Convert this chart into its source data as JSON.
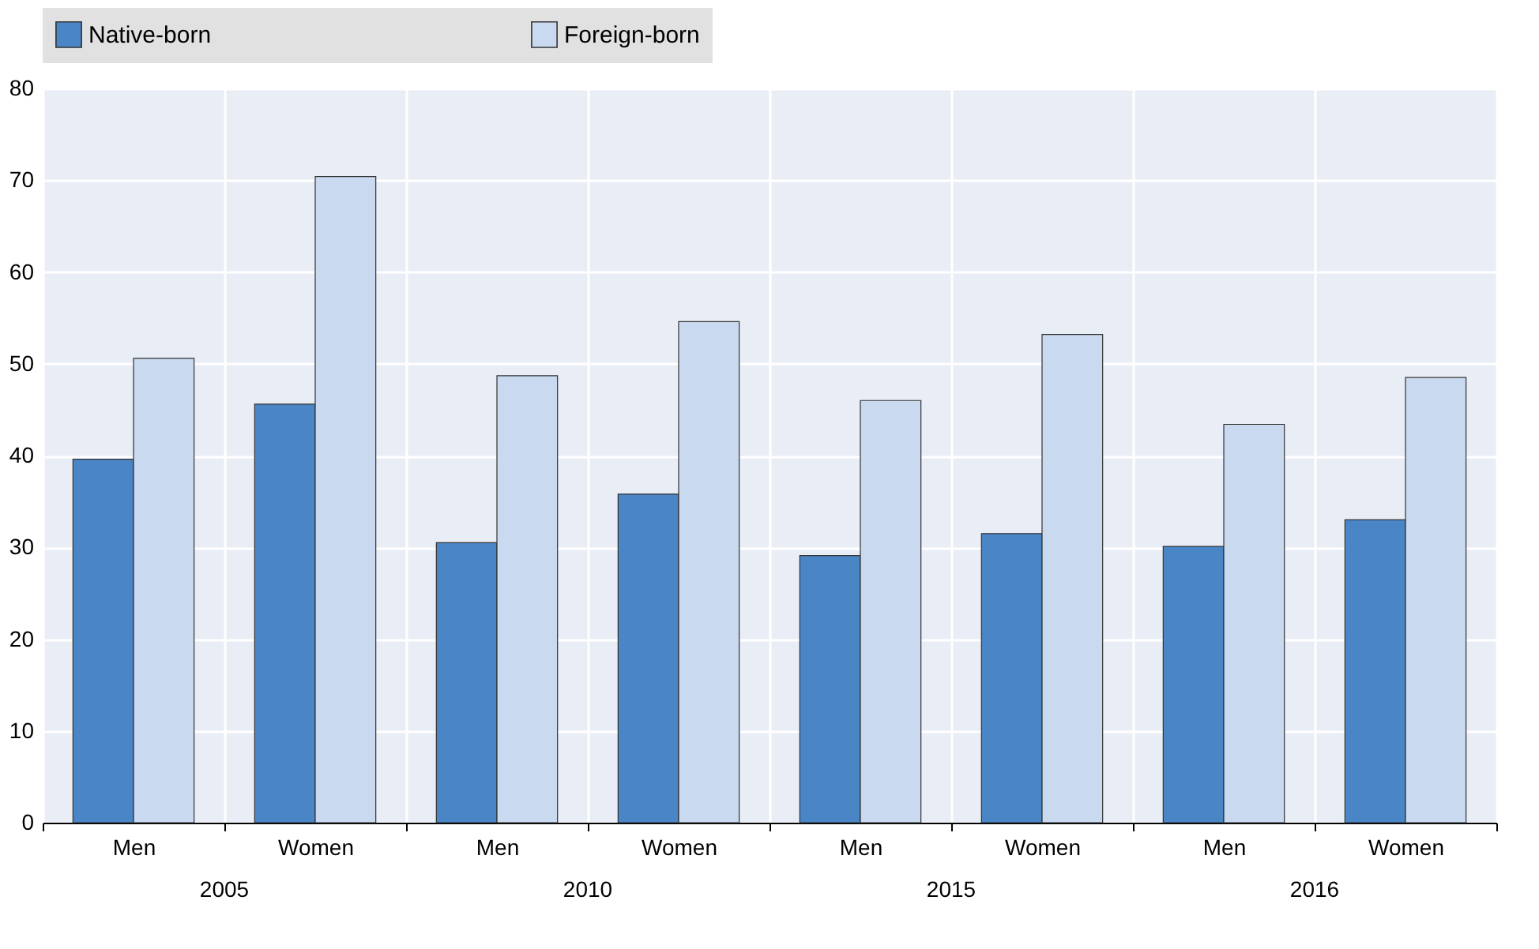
{
  "chart_data": {
    "type": "bar",
    "categories": [
      "Men",
      "Women",
      "Men",
      "Women",
      "Men",
      "Women",
      "Men",
      "Women"
    ],
    "annotations": [
      "2005",
      "2010",
      "2015",
      "2016"
    ],
    "series": [
      {
        "name": "Native-born",
        "color": "#4a86c6",
        "values": [
          39.6,
          45.6,
          30.5,
          35.8,
          29.1,
          31.5,
          30.1,
          33.0
        ]
      },
      {
        "name": "Foreign-born",
        "color": "#c9d9ef",
        "values": [
          50.6,
          70.4,
          48.7,
          54.6,
          46.0,
          53.2,
          43.4,
          48.5
        ]
      }
    ],
    "ylim": [
      0,
      80
    ],
    "yticks": [
      0,
      10,
      20,
      30,
      40,
      50,
      60,
      70,
      80
    ],
    "grid": true,
    "legend": "top"
  }
}
